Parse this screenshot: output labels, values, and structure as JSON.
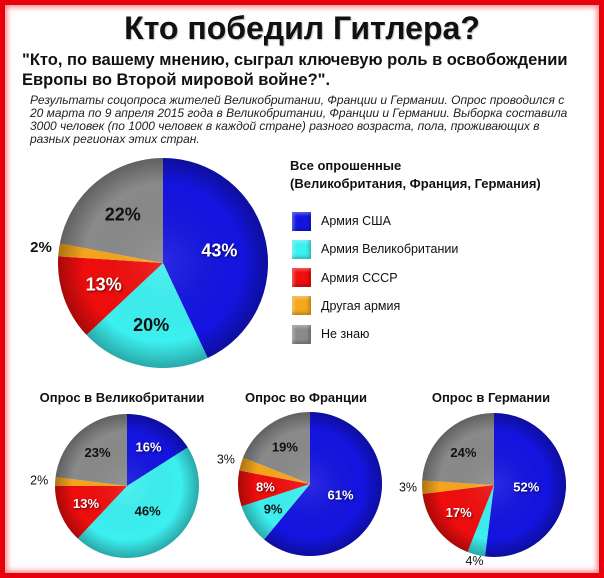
{
  "theme": {
    "frame": "#e8000b"
  },
  "header": {
    "title": "Кто победил Гитлера?",
    "question_lines": [
      "\"Кто, по вашему мнению, сыграл ключевую роль в освобождении",
      "Европы во Второй мировой войне?\"."
    ],
    "description_lines": [
      "Результаты соцопроса жителей Великобритании, Франции и Германии. Опрос проводился с",
      "20 марта по 9 апреля 2015 года в Великобритании, Франции и Германии. Выборка составила",
      "3000 человек (по 1000 человек в каждой стране) разного возраста, пола, проживающих в",
      "разных регионах этих стран."
    ]
  },
  "chart_data": [
    {
      "type": "pie",
      "title": "Все опрошенные",
      "subtitle": "(Великобритания, Франция, Германия)",
      "categories": [
        "Армия США",
        "Армия Великобритании",
        "Армия СССР",
        "Другая армия",
        "Не знаю"
      ],
      "values": [
        43,
        20,
        13,
        2,
        22
      ],
      "unit": "%",
      "colors": [
        "#1414e0",
        "#3cf0f0",
        "#f00d0d",
        "#f6a61c",
        "#8a8a8a"
      ],
      "legend": "right"
    },
    {
      "type": "pie",
      "title": "Опрос в Великобритании",
      "categories": [
        "Армия США",
        "Армия Великобритании",
        "Армия СССР",
        "Другая армия",
        "Не знаю"
      ],
      "values": [
        16,
        46,
        13,
        2,
        23
      ],
      "unit": "%",
      "colors": [
        "#1414e0",
        "#3cf0f0",
        "#f00d0d",
        "#f6a61c",
        "#8a8a8a"
      ]
    },
    {
      "type": "pie",
      "title": "Опрос во Франции",
      "categories": [
        "Армия США",
        "Армия Великобритании",
        "Армия СССР",
        "Другая армия",
        "Не знаю"
      ],
      "values": [
        61,
        9,
        8,
        3,
        19
      ],
      "unit": "%",
      "colors": [
        "#1414e0",
        "#3cf0f0",
        "#f00d0d",
        "#f6a61c",
        "#8a8a8a"
      ]
    },
    {
      "type": "pie",
      "title": "Опрос в Германии",
      "categories": [
        "Армия США",
        "Армия Великобритании",
        "Армия СССР",
        "Другая армия",
        "Не знаю"
      ],
      "values": [
        52,
        4,
        17,
        3,
        24
      ],
      "unit": "%",
      "colors": [
        "#1414e0",
        "#3cf0f0",
        "#f00d0d",
        "#f6a61c",
        "#8a8a8a"
      ]
    }
  ]
}
